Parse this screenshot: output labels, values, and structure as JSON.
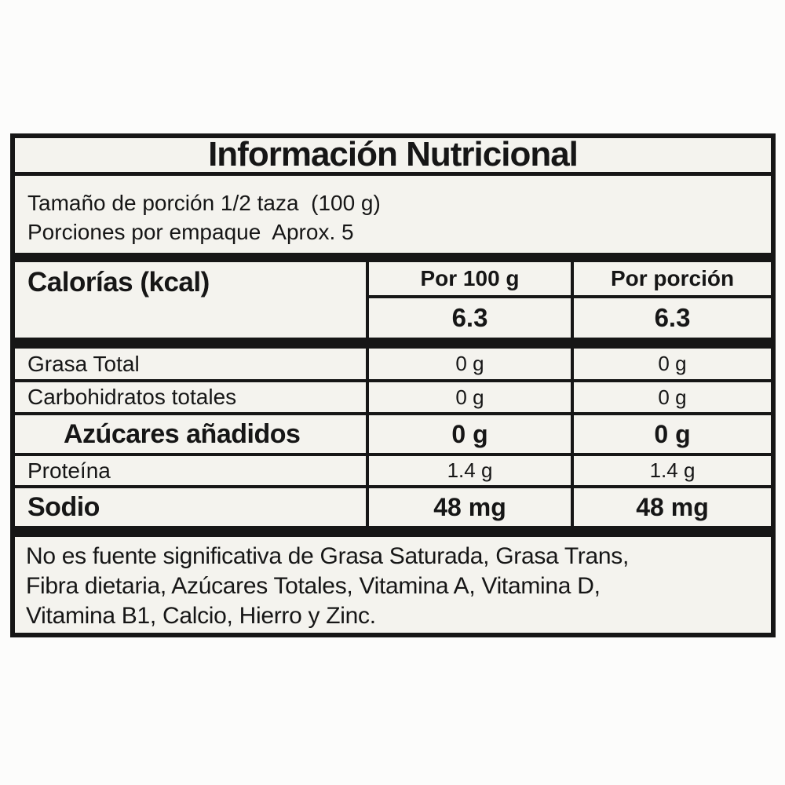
{
  "label": {
    "title": "Información Nutricional",
    "serving": {
      "line1": "Tamaño de porción 1/2 taza  (100 g)",
      "line2": "Porciones por empaque  Aprox. 5"
    },
    "calories": {
      "label": "Calorías (kcal)",
      "col_headers": [
        "Por 100 g",
        "Por porción"
      ],
      "per_100g": "6.3",
      "per_serving": "6.3"
    },
    "nutrients": [
      {
        "name": "Grasa Total",
        "per_100g": "0 g",
        "per_serving": "0 g",
        "bold": false,
        "indent": false,
        "height": "row-h-43"
      },
      {
        "name": "Carbohidratos totales",
        "per_100g": "0 g",
        "per_serving": "0 g",
        "bold": false,
        "indent": false,
        "height": "row-h-42"
      },
      {
        "name": "Azúcares añadidos",
        "per_100g": "0 g",
        "per_serving": "0 g",
        "bold": true,
        "indent": true,
        "height": "row-h-52"
      },
      {
        "name": "Proteína",
        "per_100g": "1.4 g",
        "per_serving": "1.4 g",
        "bold": false,
        "indent": false,
        "height": "row-h-41"
      },
      {
        "name": "Sodio",
        "per_100g": "48 mg",
        "per_serving": "48 mg",
        "bold": true,
        "indent": false,
        "height": "row-h-48"
      }
    ],
    "footnote": {
      "lines": [
        "No es fuente significativa de Grasa Saturada, Grasa Trans,",
        "Fibra dietaria, Azúcares Totales, Vitamina A, Vitamina D,",
        "Vitamina B1, Calcio, Hierro y Zinc."
      ]
    }
  },
  "colors": {
    "border": "#161616",
    "label_background": "#f4f3ee",
    "page_background": "#fcfcfb",
    "text": "#161616"
  }
}
